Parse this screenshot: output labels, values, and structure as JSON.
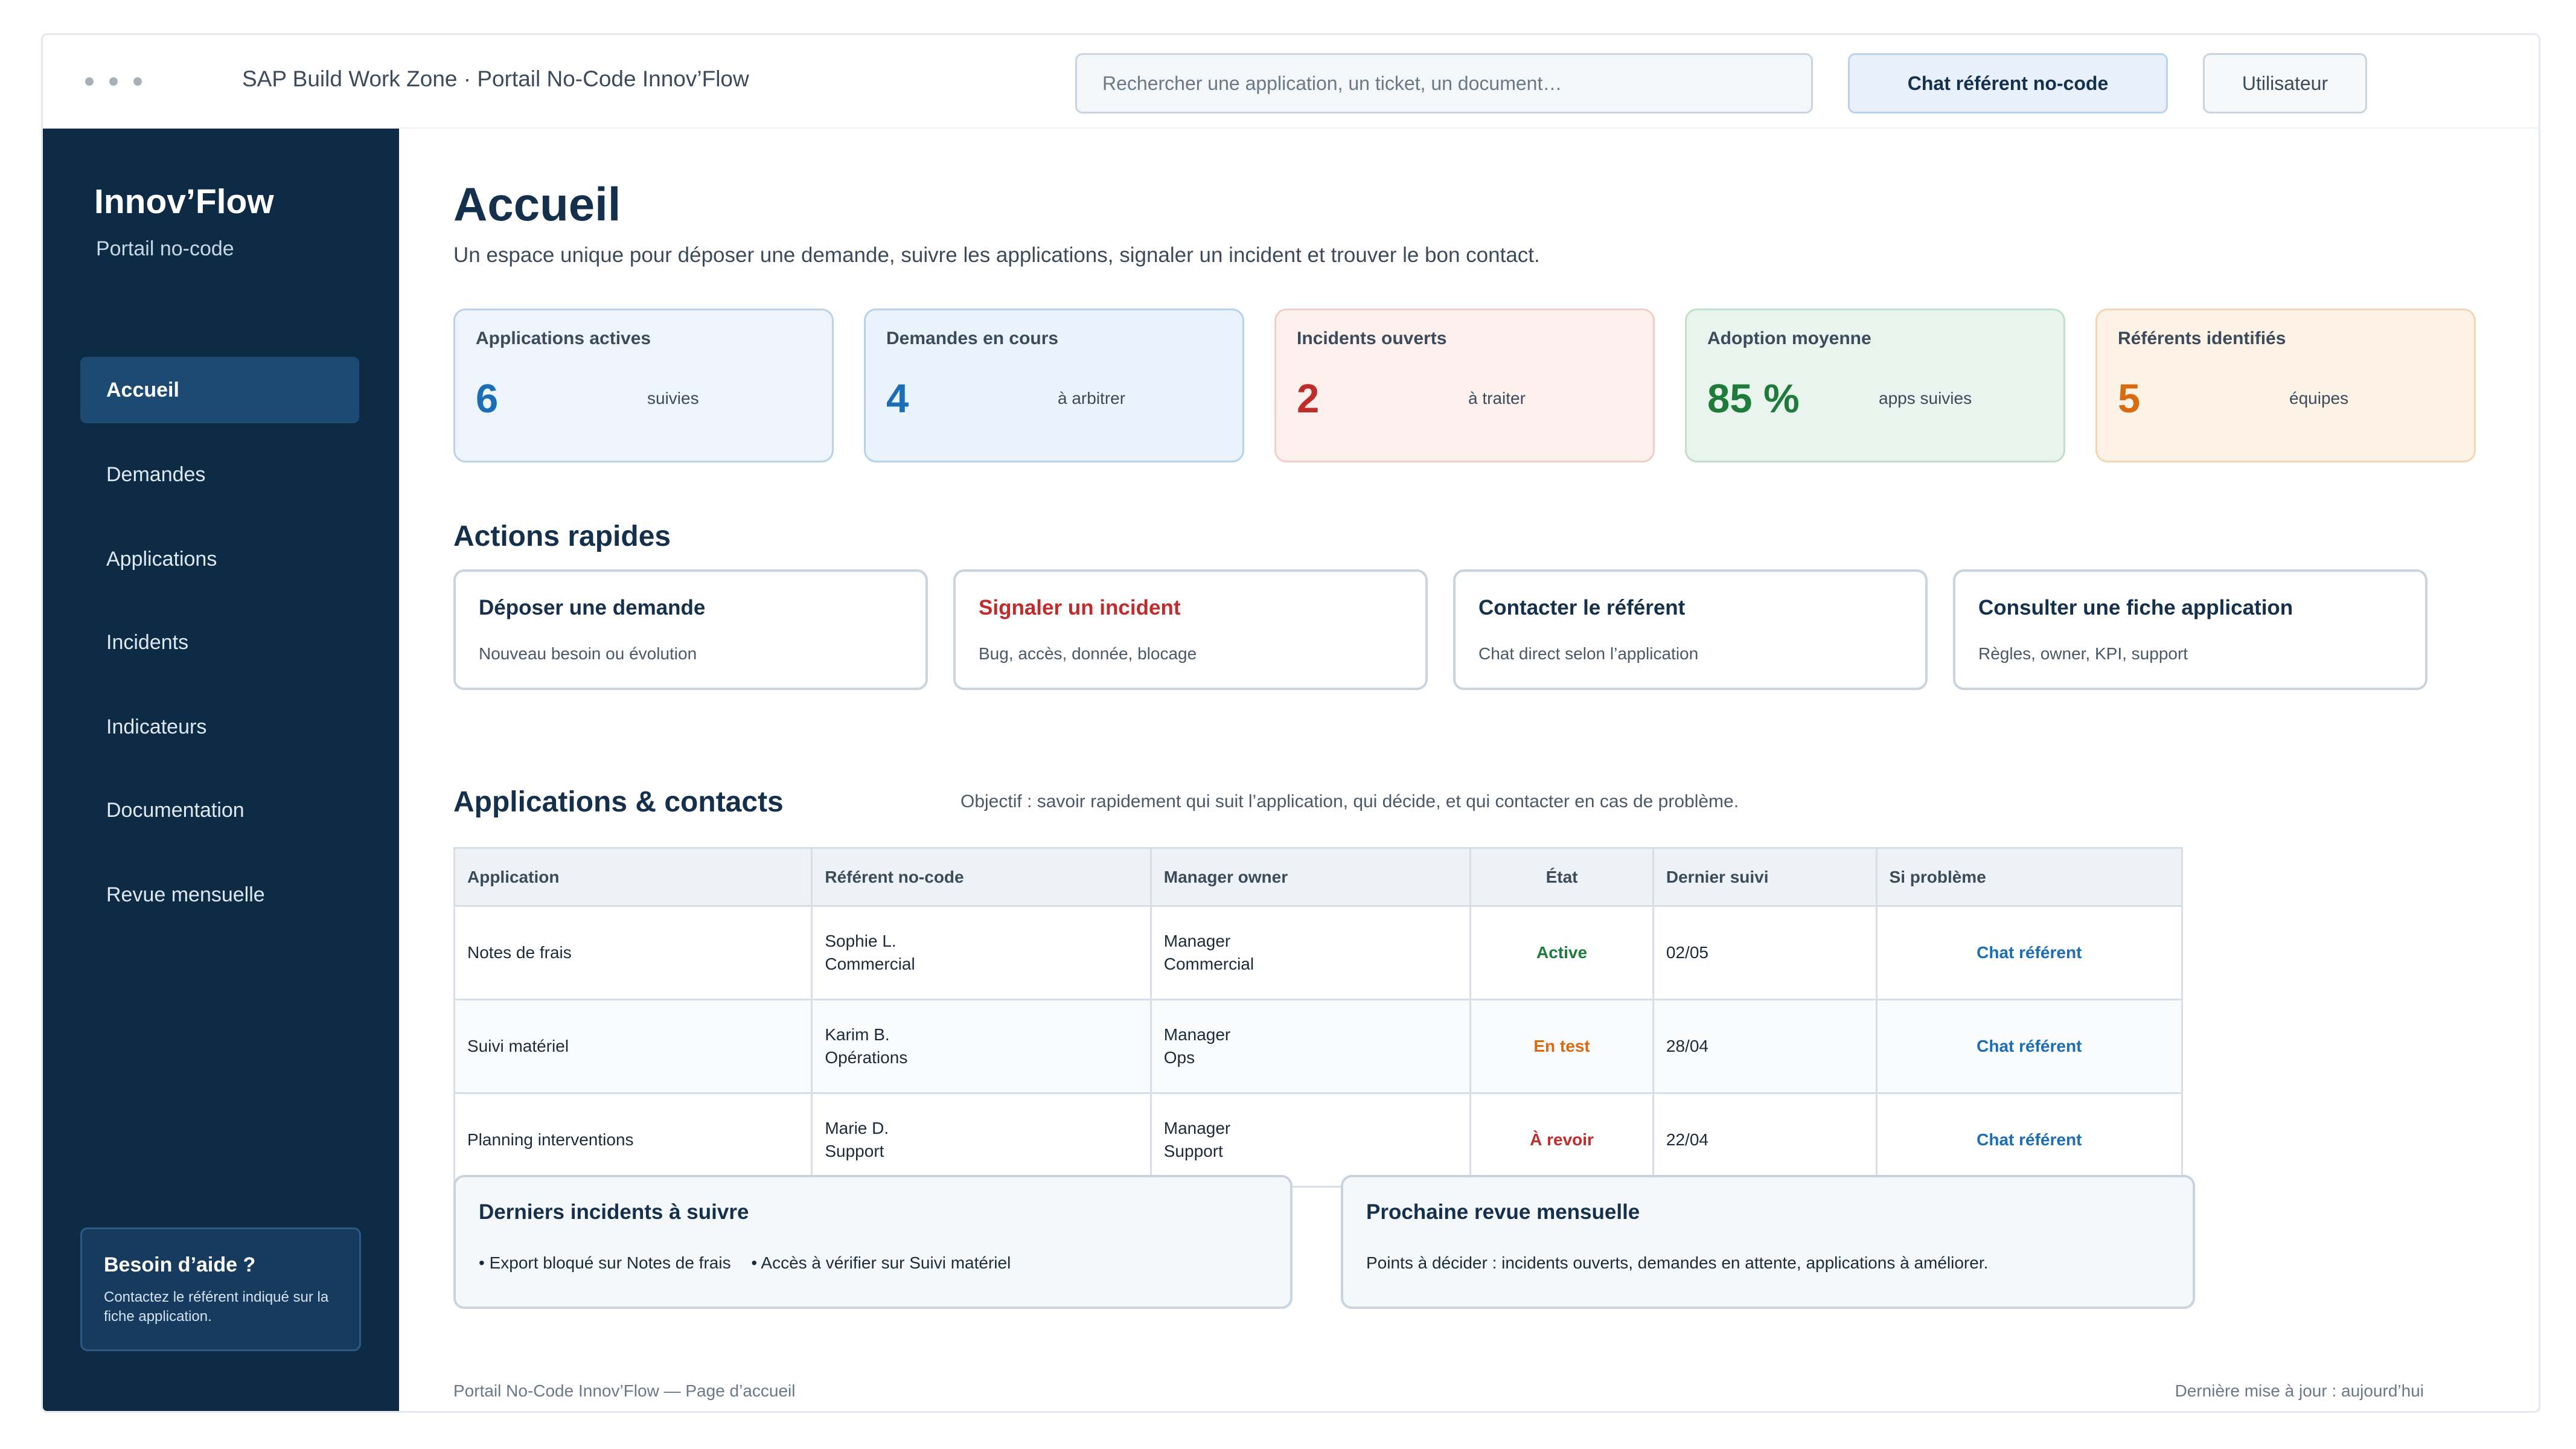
{
  "window": {
    "title": "SAP Build Work Zone · Portail No-Code Innov’Flow"
  },
  "header": {
    "search_placeholder": "Rechercher une application, un ticket, un document…",
    "chat_button": "Chat référent no-code",
    "user_button": "Utilisateur"
  },
  "sidebar": {
    "brand": "Innov’Flow",
    "subtitle": "Portail no-code",
    "items": [
      {
        "label": "Accueil",
        "active": true
      },
      {
        "label": "Demandes"
      },
      {
        "label": "Applications"
      },
      {
        "label": "Incidents"
      },
      {
        "label": "Indicateurs"
      },
      {
        "label": "Documentation"
      },
      {
        "label": "Revue mensuelle"
      }
    ],
    "help": {
      "title": "Besoin d’aide ?",
      "text": "Contactez le référent indiqué sur la fiche application."
    }
  },
  "main": {
    "title": "Accueil",
    "subtitle": "Un espace unique pour déposer une demande, suivre les applications, signaler un incident et trouver le bon contact.",
    "kpis": [
      {
        "label": "Applications actives",
        "value": "6",
        "note": "suivies",
        "color": "#1b6db5",
        "bg": "#eef4fb",
        "border": "#bcd2e8"
      },
      {
        "label": "Demandes en cours",
        "value": "4",
        "note": "à arbitrer",
        "color": "#1b6db5",
        "bg": "#eaf3fc",
        "border": "#b5d2ee"
      },
      {
        "label": "Incidents ouverts",
        "value": "2",
        "note": "à traiter",
        "color": "#c02b2b",
        "bg": "#fdf0ed",
        "border": "#f1cfc8"
      },
      {
        "label": "Adoption moyenne",
        "value": "85 %",
        "note": "apps suivies",
        "color": "#1e7b3a",
        "bg": "#eaf4ee",
        "border": "#c2dfcb"
      },
      {
        "label": "Référents identifiés",
        "value": "5",
        "note": "équipes",
        "color": "#d86a0f",
        "bg": "#fdf2e6",
        "border": "#f3d6b3"
      }
    ],
    "actions_title": "Actions rapides",
    "actions": [
      {
        "title": "Déposer une demande",
        "desc": "Nouveau besoin ou évolution"
      },
      {
        "title": "Signaler un incident",
        "desc": "Bug, accès, donnée, blocage"
      },
      {
        "title": "Contacter le référent",
        "desc": "Chat direct selon l’application"
      },
      {
        "title": "Consulter une fiche application",
        "desc": "Règles, owner, KPI, support"
      }
    ],
    "apps_title": "Applications & contacts",
    "apps_objective": "Objectif : savoir rapidement qui suit l’application, qui décide, et qui contacter en cas de problème.",
    "table": {
      "headers": [
        "Application",
        "Référent no-code",
        "Manager owner",
        "État",
        "Dernier suivi",
        "Si problème"
      ],
      "rows": [
        {
          "app": "Notes de frais",
          "ref_name": "Sophie L.",
          "ref_team": "Commercial",
          "mgr_role": "Manager",
          "mgr_team": "Commercial",
          "state": "Active",
          "last": "02/05",
          "action": "Chat référent"
        },
        {
          "app": "Suivi matériel",
          "ref_name": "Karim B.",
          "ref_team": "Opérations",
          "mgr_role": "Manager",
          "mgr_team": "Ops",
          "state": "En test",
          "last": "28/04",
          "action": "Chat référent"
        },
        {
          "app": "Planning interventions",
          "ref_name": "Marie D.",
          "ref_team": "Support",
          "mgr_role": "Manager",
          "mgr_team": "Support",
          "state": "À revoir",
          "last": "22/04",
          "action": "Chat référent"
        }
      ]
    },
    "incidents": {
      "title": "Derniers incidents à suivre",
      "items": [
        "• Export bloqué sur Notes de frais",
        "• Accès à vérifier sur Suivi matériel"
      ]
    },
    "review": {
      "title": "Prochaine revue mensuelle",
      "text": "Points à décider : incidents ouverts, demandes en attente, applications à améliorer."
    },
    "footer_left": "Portail No-Code Innov’Flow — Page d’accueil",
    "footer_right": "Dernière mise à jour : aujourd’hui"
  }
}
